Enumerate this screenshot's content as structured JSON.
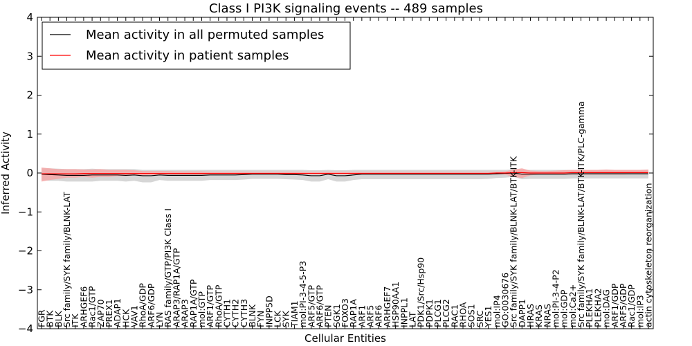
{
  "chart_data": {
    "type": "line",
    "title": "Class I PI3K signaling events -- 489 samples",
    "xlabel": "Cellular Entities",
    "ylabel": "Inferred Activity",
    "ylim": [
      -4,
      4
    ],
    "yticks": [
      4,
      3,
      2,
      1,
      0,
      -1,
      -2,
      -3,
      -4
    ],
    "ytick_labels": [
      "4",
      "3",
      "2",
      "1",
      "0",
      "−1",
      "−2",
      "−3",
      "−4"
    ],
    "grid": false,
    "legend": "top-left",
    "categories": [
      "FGR",
      "BTK",
      "BLK",
      "Src family/SYK family/BLNK-LAT",
      "ITK",
      "ARHGEF6",
      "Rac1/GTP",
      "ZAP70",
      "PREX1",
      "ADAP1",
      "HCK",
      "VAV1",
      "RhoA/GDP",
      "ARF6/GDP",
      "LYN",
      "RAS family/GTP/PI3K Class I",
      "ARAP3/RAP1A/GTP",
      "ARAP3",
      "RAP1A/GTP",
      "mol:GTP",
      "ARF1/GTP",
      "RhoA/GTP",
      "CYTH1",
      "CYTH2",
      "CYTH3",
      "BLNK",
      "FYN",
      "INPP5D",
      "LCK",
      "SYK",
      "TIAM1",
      "mol:PI-3-4-5-P3",
      "ARF5/GTP",
      "ARF6/GTP",
      "PTEN",
      "SGK1",
      "FOXO3",
      "RAP1A",
      "ARF1",
      "ARF5",
      "ARF6",
      "ARHGEF7",
      "HSP90AA1",
      "INPPL1",
      "LAT",
      "PDK1/Src/Hsp90",
      "PDPK1",
      "PLCG1",
      "PLCG2",
      "RAC1",
      "RHOA",
      "SOS1",
      "SRC",
      "YES1",
      "mol:IP4",
      "GO:0030676",
      "Src family/SYK family/BLNK-LAT/BTK-ITK",
      "DAPP1",
      "HRAS",
      "KRAS",
      "NRAS",
      "mol:PI-3-4-P2",
      "mol:GDP",
      "mol:Ca2+",
      "Src family/SYK family/BLNK-LAT/BTK-ITK/PLC-gamma",
      "PLEKHA1",
      "PLEKHA2",
      "mol:DAG",
      "ARF1/GDP",
      "ARF5/GDP",
      "Rac1/GDP",
      "mol:IP3",
      "actin cytoskeleton reorganization"
    ],
    "series": [
      {
        "name": "Mean activity in all permuted samples",
        "color": "#000000",
        "band_color": "#c8c8c8",
        "values": [
          -0.03,
          -0.04,
          -0.05,
          -0.06,
          -0.06,
          -0.06,
          -0.05,
          -0.05,
          -0.05,
          -0.05,
          -0.06,
          -0.05,
          -0.07,
          -0.07,
          -0.05,
          -0.06,
          -0.06,
          -0.06,
          -0.06,
          -0.06,
          -0.05,
          -0.05,
          -0.05,
          -0.05,
          -0.04,
          -0.03,
          -0.03,
          -0.03,
          -0.03,
          -0.04,
          -0.04,
          -0.05,
          -0.07,
          -0.07,
          -0.03,
          -0.07,
          -0.07,
          -0.05,
          -0.03,
          -0.03,
          -0.03,
          -0.03,
          -0.03,
          -0.03,
          -0.03,
          -0.03,
          -0.03,
          -0.03,
          -0.03,
          -0.03,
          -0.03,
          -0.03,
          -0.03,
          -0.03,
          -0.02,
          -0.01,
          0.0,
          -0.03,
          -0.03,
          -0.03,
          -0.03,
          -0.03,
          -0.03,
          -0.02,
          -0.02,
          -0.02,
          -0.02,
          -0.02,
          -0.02,
          -0.02,
          -0.02,
          -0.02,
          -0.02
        ],
        "lower": [
          -0.18,
          -0.2,
          -0.2,
          -0.22,
          -0.22,
          -0.22,
          -0.22,
          -0.2,
          -0.2,
          -0.2,
          -0.22,
          -0.2,
          -0.24,
          -0.24,
          -0.18,
          -0.2,
          -0.2,
          -0.2,
          -0.2,
          -0.2,
          -0.18,
          -0.18,
          -0.18,
          -0.18,
          -0.17,
          -0.15,
          -0.15,
          -0.15,
          -0.15,
          -0.16,
          -0.17,
          -0.18,
          -0.22,
          -0.22,
          -0.16,
          -0.22,
          -0.22,
          -0.18,
          -0.16,
          -0.16,
          -0.16,
          -0.16,
          -0.16,
          -0.16,
          -0.16,
          -0.16,
          -0.16,
          -0.16,
          -0.16,
          -0.16,
          -0.16,
          -0.16,
          -0.16,
          -0.15,
          -0.13,
          -0.12,
          -0.1,
          -0.16,
          -0.15,
          -0.15,
          -0.15,
          -0.15,
          -0.15,
          -0.14,
          -0.14,
          -0.14,
          -0.14,
          -0.14,
          -0.14,
          -0.14,
          -0.14,
          -0.14,
          -0.14
        ],
        "upper": [
          0.12,
          0.12,
          0.11,
          0.1,
          0.1,
          0.1,
          0.11,
          0.1,
          0.1,
          0.1,
          0.1,
          0.1,
          0.08,
          0.08,
          0.08,
          0.08,
          0.08,
          0.08,
          0.08,
          0.08,
          0.08,
          0.08,
          0.08,
          0.08,
          0.08,
          0.08,
          0.08,
          0.08,
          0.08,
          0.08,
          0.08,
          0.08,
          0.07,
          0.07,
          0.08,
          0.07,
          0.07,
          0.08,
          0.08,
          0.08,
          0.08,
          0.08,
          0.08,
          0.08,
          0.08,
          0.08,
          0.08,
          0.08,
          0.08,
          0.08,
          0.08,
          0.08,
          0.08,
          0.08,
          0.08,
          0.08,
          0.09,
          0.08,
          0.08,
          0.08,
          0.08,
          0.08,
          0.08,
          0.08,
          0.08,
          0.08,
          0.08,
          0.08,
          0.08,
          0.08,
          0.08,
          0.08,
          0.08
        ]
      },
      {
        "name": "Mean activity in patient samples",
        "color": "#ff0000",
        "band_color": "#f4a7a7",
        "values": [
          -0.02,
          -0.02,
          -0.02,
          -0.02,
          -0.02,
          -0.01,
          -0.01,
          -0.01,
          -0.01,
          -0.01,
          -0.01,
          -0.01,
          -0.01,
          -0.01,
          -0.01,
          -0.01,
          -0.01,
          -0.01,
          -0.01,
          -0.01,
          -0.01,
          -0.01,
          -0.01,
          -0.01,
          -0.01,
          -0.01,
          -0.01,
          -0.01,
          -0.01,
          -0.01,
          -0.01,
          -0.01,
          -0.01,
          -0.01,
          -0.01,
          -0.01,
          -0.01,
          -0.01,
          -0.01,
          -0.01,
          -0.01,
          -0.01,
          -0.01,
          -0.01,
          -0.01,
          -0.01,
          -0.01,
          -0.01,
          -0.01,
          -0.01,
          -0.01,
          -0.01,
          -0.01,
          -0.01,
          0.0,
          0.0,
          0.01,
          0.01,
          0.0,
          0.0,
          0.0,
          0.0,
          0.0,
          0.01,
          0.01,
          0.01,
          0.01,
          0.01,
          0.01,
          0.01,
          0.01,
          0.01,
          0.01
        ],
        "lower": [
          -0.22,
          -0.18,
          -0.15,
          -0.12,
          -0.12,
          -0.1,
          -0.12,
          -0.1,
          -0.1,
          -0.08,
          -0.08,
          -0.06,
          -0.06,
          -0.05,
          -0.05,
          -0.04,
          -0.04,
          -0.04,
          -0.04,
          -0.04,
          -0.03,
          -0.03,
          -0.03,
          -0.03,
          -0.03,
          -0.03,
          -0.03,
          -0.03,
          -0.03,
          -0.03,
          -0.03,
          -0.03,
          -0.03,
          -0.03,
          -0.03,
          -0.03,
          -0.03,
          -0.03,
          -0.03,
          -0.03,
          -0.03,
          -0.03,
          -0.03,
          -0.03,
          -0.03,
          -0.03,
          -0.03,
          -0.03,
          -0.03,
          -0.03,
          -0.03,
          -0.03,
          -0.03,
          -0.03,
          -0.03,
          -0.04,
          -0.1,
          -0.13,
          -0.06,
          -0.04,
          -0.04,
          -0.04,
          -0.04,
          -0.04,
          -0.04,
          -0.04,
          -0.04,
          -0.04,
          -0.04,
          -0.04,
          -0.03,
          -0.03,
          -0.03
        ],
        "upper": [
          0.14,
          0.12,
          0.1,
          0.1,
          0.1,
          0.09,
          0.09,
          0.1,
          0.08,
          0.08,
          0.08,
          0.07,
          0.05,
          0.05,
          0.05,
          0.05,
          0.04,
          0.04,
          0.04,
          0.04,
          0.03,
          0.03,
          0.03,
          0.03,
          0.03,
          0.03,
          0.03,
          0.03,
          0.03,
          0.03,
          0.03,
          0.03,
          0.03,
          0.03,
          0.03,
          0.03,
          0.03,
          0.03,
          0.03,
          0.03,
          0.03,
          0.03,
          0.03,
          0.03,
          0.03,
          0.03,
          0.03,
          0.03,
          0.03,
          0.03,
          0.03,
          0.03,
          0.03,
          0.03,
          0.03,
          0.04,
          0.09,
          0.12,
          0.06,
          0.05,
          0.05,
          0.06,
          0.07,
          0.08,
          0.08,
          0.08,
          0.08,
          0.09,
          0.08,
          0.08,
          0.08,
          0.08,
          0.09
        ]
      }
    ]
  }
}
